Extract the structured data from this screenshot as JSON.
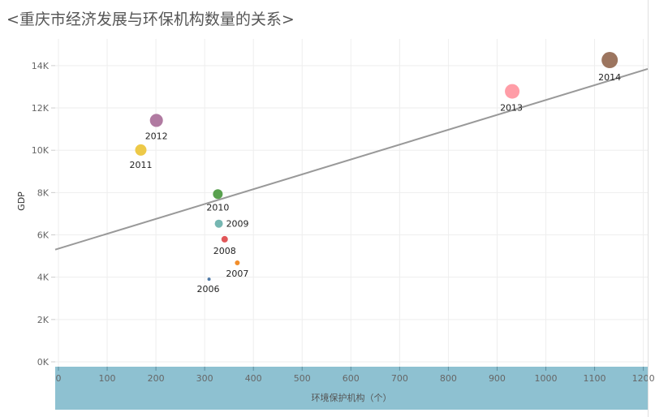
{
  "chart_data": {
    "type": "scatter",
    "title": "<重庆市经济发展与环保机构数量的关系>",
    "xlabel": "环境保护机构（个）",
    "ylabel": "GDP",
    "xlim": [
      0,
      1210
    ],
    "ylim": [
      0,
      15200
    ],
    "x_ticks": [
      0,
      100,
      200,
      300,
      400,
      500,
      600,
      700,
      800,
      900,
      1000,
      1100,
      1200
    ],
    "x_tick_labels": [
      "0",
      "100",
      "200",
      "300",
      "400",
      "500",
      "600",
      "700",
      "800",
      "900",
      "1000",
      "1100",
      "1200"
    ],
    "y_ticks": [
      0,
      2000,
      4000,
      6000,
      8000,
      10000,
      12000,
      14000
    ],
    "y_tick_labels": [
      "0K",
      "2K",
      "4K",
      "6K",
      "8K",
      "10K",
      "12K",
      "14K"
    ],
    "grid": true,
    "points": [
      {
        "label": "2006",
        "x": 309,
        "y": 3907,
        "color": "#4e79a7"
      },
      {
        "label": "2007",
        "x": 367,
        "y": 4676,
        "color": "#f28e2b"
      },
      {
        "label": "2008",
        "x": 341,
        "y": 5794,
        "color": "#e15759"
      },
      {
        "label": "2009",
        "x": 329,
        "y": 6530,
        "color": "#76b7b2"
      },
      {
        "label": "2010",
        "x": 327,
        "y": 7926,
        "color": "#59a14f"
      },
      {
        "label": "2011",
        "x": 169,
        "y": 10011,
        "color": "#edc948"
      },
      {
        "label": "2012",
        "x": 201,
        "y": 11410,
        "color": "#b07aa1"
      },
      {
        "label": "2013",
        "x": 931,
        "y": 12783,
        "color": "#ff9da7"
      },
      {
        "label": "2014",
        "x": 1131,
        "y": 14263,
        "color": "#9c755f"
      }
    ],
    "trend_line": {
      "x": [
        0,
        1210
      ],
      "y": [
        5350,
        13850
      ],
      "color": "#999999"
    }
  }
}
